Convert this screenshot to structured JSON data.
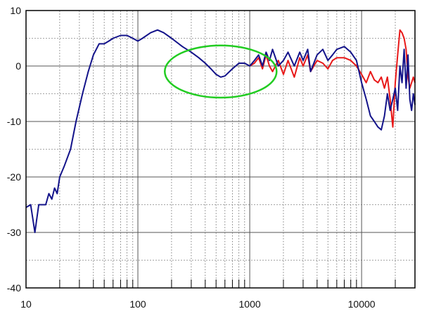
{
  "chart_data": {
    "type": "line",
    "x_scale": "log",
    "xlim": [
      10,
      30000
    ],
    "ylim": [
      -40,
      10
    ],
    "x_ticks": [
      10,
      100,
      1000,
      10000
    ],
    "x_tick_labels": [
      "10",
      "100",
      "1000",
      "10000"
    ],
    "y_ticks": [
      10,
      0,
      -10,
      -20,
      -30,
      -40
    ],
    "y_tick_labels": [
      "10",
      "0",
      "-10",
      "-20",
      "-30",
      "-40"
    ],
    "y_minor_step": 5,
    "grid": true,
    "colors": {
      "background": "#ffffff",
      "frame": "#000000",
      "grid": "#888888",
      "series_blue": "#13138a",
      "series_red": "#e81818",
      "highlight_circle": "#22cc22"
    },
    "series": [
      {
        "color": "#13138a",
        "points": [
          [
            10,
            -25.5
          ],
          [
            11,
            -25
          ],
          [
            12,
            -30
          ],
          [
            13,
            -25
          ],
          [
            14,
            -25
          ],
          [
            15,
            -25
          ],
          [
            16,
            -23
          ],
          [
            17,
            -24
          ],
          [
            18,
            -22
          ],
          [
            19,
            -23
          ],
          [
            20,
            -20
          ],
          [
            22,
            -18
          ],
          [
            25,
            -15
          ],
          [
            28,
            -10
          ],
          [
            32,
            -5
          ],
          [
            36,
            -1
          ],
          [
            40,
            2
          ],
          [
            45,
            4
          ],
          [
            50,
            4
          ],
          [
            55,
            4.5
          ],
          [
            60,
            5
          ],
          [
            70,
            5.5
          ],
          [
            80,
            5.5
          ],
          [
            90,
            5
          ],
          [
            100,
            4.5
          ],
          [
            110,
            5
          ],
          [
            130,
            6
          ],
          [
            150,
            6.5
          ],
          [
            170,
            6
          ],
          [
            200,
            5
          ],
          [
            250,
            3.5
          ],
          [
            300,
            2.5
          ],
          [
            350,
            1.5
          ],
          [
            400,
            0.5
          ],
          [
            450,
            -0.5
          ],
          [
            500,
            -1.5
          ],
          [
            550,
            -2
          ],
          [
            600,
            -1.8
          ],
          [
            700,
            -0.5
          ],
          [
            800,
            0.5
          ],
          [
            900,
            0.5
          ],
          [
            1000,
            0
          ],
          [
            1100,
            1
          ],
          [
            1200,
            2
          ],
          [
            1300,
            0
          ],
          [
            1400,
            2.5
          ],
          [
            1500,
            1
          ],
          [
            1600,
            3
          ],
          [
            1800,
            0
          ],
          [
            2000,
            1
          ],
          [
            2200,
            2.5
          ],
          [
            2500,
            0
          ],
          [
            2800,
            2.5
          ],
          [
            3000,
            1
          ],
          [
            3300,
            3
          ],
          [
            3500,
            -1
          ],
          [
            4000,
            2
          ],
          [
            4500,
            3
          ],
          [
            5000,
            1
          ],
          [
            5500,
            2
          ],
          [
            6000,
            3
          ],
          [
            7000,
            3.5
          ],
          [
            8000,
            2.5
          ],
          [
            9000,
            1
          ],
          [
            10000,
            -3
          ],
          [
            11000,
            -6
          ],
          [
            12000,
            -9
          ],
          [
            13000,
            -10
          ],
          [
            14000,
            -11
          ],
          [
            15000,
            -11.5
          ],
          [
            16000,
            -9
          ],
          [
            17000,
            -5
          ],
          [
            18000,
            -8
          ],
          [
            19000,
            -6
          ],
          [
            20000,
            -4
          ],
          [
            21000,
            -8
          ],
          [
            22000,
            0
          ],
          [
            23000,
            -3
          ],
          [
            24000,
            3
          ],
          [
            25000,
            -4
          ],
          [
            26000,
            2
          ],
          [
            27000,
            -6
          ],
          [
            28000,
            -8
          ],
          [
            29000,
            -5
          ],
          [
            30000,
            -7
          ]
        ]
      },
      {
        "color": "#e81818",
        "points": [
          [
            1000,
            0
          ],
          [
            1100,
            0.5
          ],
          [
            1200,
            1.5
          ],
          [
            1300,
            -0.5
          ],
          [
            1400,
            2
          ],
          [
            1500,
            0
          ],
          [
            1600,
            -1
          ],
          [
            1800,
            1
          ],
          [
            2000,
            -1.5
          ],
          [
            2200,
            1
          ],
          [
            2500,
            -2
          ],
          [
            2800,
            1.5
          ],
          [
            3000,
            0
          ],
          [
            3300,
            2
          ],
          [
            3500,
            -1
          ],
          [
            4000,
            1
          ],
          [
            4500,
            0.5
          ],
          [
            5000,
            -0.5
          ],
          [
            5500,
            1
          ],
          [
            6000,
            1.5
          ],
          [
            7000,
            1.5
          ],
          [
            8000,
            1
          ],
          [
            9000,
            0
          ],
          [
            10000,
            -1.5
          ],
          [
            11000,
            -3
          ],
          [
            12000,
            -1
          ],
          [
            13000,
            -2.5
          ],
          [
            14000,
            -3
          ],
          [
            15000,
            -2
          ],
          [
            16000,
            -4
          ],
          [
            17000,
            -2
          ],
          [
            18000,
            -6
          ],
          [
            19000,
            -11
          ],
          [
            20000,
            -3
          ],
          [
            21000,
            2
          ],
          [
            22000,
            6.5
          ],
          [
            23000,
            6
          ],
          [
            24000,
            5
          ],
          [
            25000,
            3
          ],
          [
            26000,
            -2
          ],
          [
            27000,
            -4
          ],
          [
            28000,
            -3
          ],
          [
            29000,
            -2
          ],
          [
            30000,
            -3
          ]
        ]
      }
    ],
    "annotations": [
      {
        "type": "circle",
        "color": "#22cc22",
        "center": [
          550,
          -1
        ],
        "radius_decades": 0.5,
        "radius_db": 4.7
      }
    ]
  }
}
